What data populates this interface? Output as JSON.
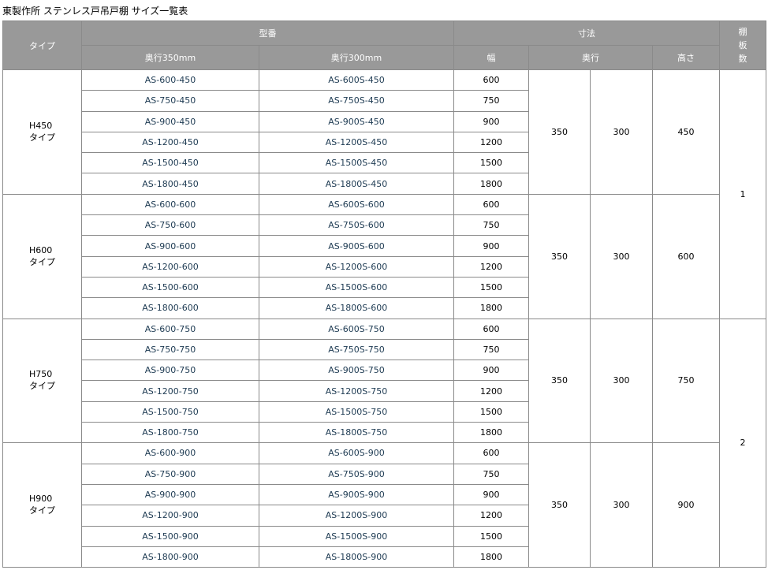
{
  "title": "東製作所 ステンレス戸吊戸棚 サイズ一覧表",
  "header": {
    "type": "タイプ",
    "model": "型番",
    "depth350": "奥行350mm",
    "depth300": "奥行300mm",
    "dimensions": "寸法",
    "width": "幅",
    "depth": "奥行",
    "height": "高さ",
    "shelves": "棚板数"
  },
  "groups": [
    {
      "type": "H450\nタイプ",
      "depth350": "350",
      "depth300": "300",
      "height": "450",
      "rows": [
        [
          "AS-600-450",
          "AS-600S-450",
          "600"
        ],
        [
          "AS-750-450",
          "AS-750S-450",
          "750"
        ],
        [
          "AS-900-450",
          "AS-900S-450",
          "900"
        ],
        [
          "AS-1200-450",
          "AS-1200S-450",
          "1200"
        ],
        [
          "AS-1500-450",
          "AS-1500S-450",
          "1500"
        ],
        [
          "AS-1800-450",
          "AS-1800S-450",
          "1800"
        ]
      ]
    },
    {
      "type": "H600\nタイプ",
      "depth350": "350",
      "depth300": "300",
      "height": "600",
      "rows": [
        [
          "AS-600-600",
          "AS-600S-600",
          "600"
        ],
        [
          "AS-750-600",
          "AS-750S-600",
          "750"
        ],
        [
          "AS-900-600",
          "AS-900S-600",
          "900"
        ],
        [
          "AS-1200-600",
          "AS-1200S-600",
          "1200"
        ],
        [
          "AS-1500-600",
          "AS-1500S-600",
          "1500"
        ],
        [
          "AS-1800-600",
          "AS-1800S-600",
          "1800"
        ]
      ]
    },
    {
      "type": "H750\nタイプ",
      "depth350": "350",
      "depth300": "300",
      "height": "750",
      "rows": [
        [
          "AS-600-750",
          "AS-600S-750",
          "600"
        ],
        [
          "AS-750-750",
          "AS-750S-750",
          "750"
        ],
        [
          "AS-900-750",
          "AS-900S-750",
          "900"
        ],
        [
          "AS-1200-750",
          "AS-1200S-750",
          "1200"
        ],
        [
          "AS-1500-750",
          "AS-1500S-750",
          "1500"
        ],
        [
          "AS-1800-750",
          "AS-1800S-750",
          "1800"
        ]
      ]
    },
    {
      "type": "H900\nタイプ",
      "depth350": "350",
      "depth300": "300",
      "height": "900",
      "rows": [
        [
          "AS-600-900",
          "AS-600S-900",
          "600"
        ],
        [
          "AS-750-900",
          "AS-750S-900",
          "750"
        ],
        [
          "AS-900-900",
          "AS-900S-900",
          "900"
        ],
        [
          "AS-1200-900",
          "AS-1200S-900",
          "1200"
        ],
        [
          "AS-1500-900",
          "AS-1500S-900",
          "1500"
        ],
        [
          "AS-1800-900",
          "AS-1800S-900",
          "1800"
        ]
      ]
    }
  ],
  "shelves": [
    {
      "value": "1",
      "groups": 2
    },
    {
      "value": "2",
      "groups": 2
    }
  ]
}
